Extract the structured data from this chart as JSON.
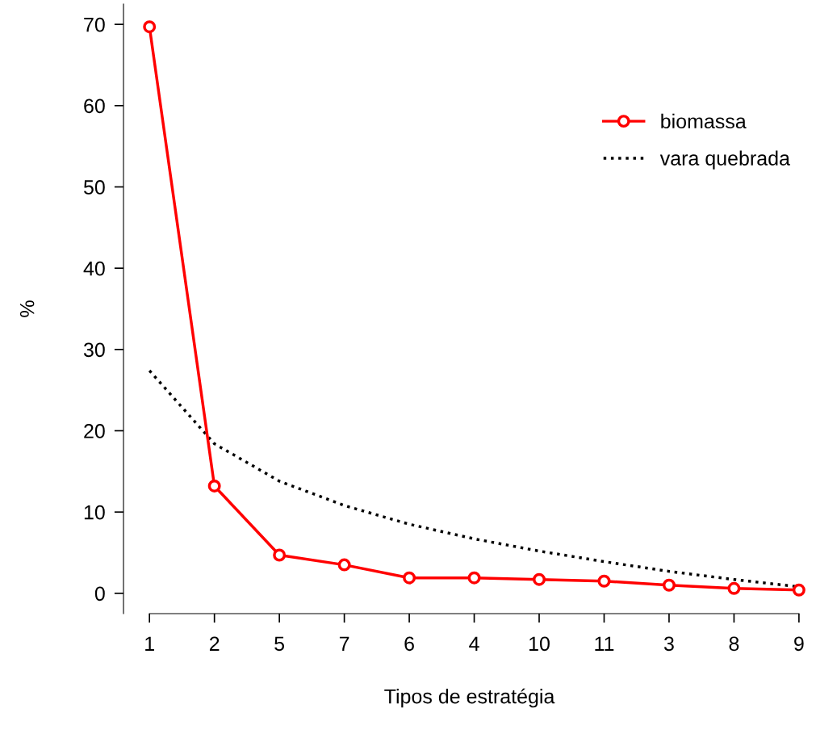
{
  "chart_data": {
    "type": "line",
    "xlabel": "Tipos de estratégia",
    "ylabel": "%",
    "categories": [
      "1",
      "2",
      "5",
      "7",
      "6",
      "4",
      "10",
      "11",
      "3",
      "8",
      "9"
    ],
    "series": [
      {
        "name": "biomassa",
        "color": "#ff0000",
        "marker": "circle",
        "line_style": "solid",
        "values": [
          69.7,
          13.2,
          4.7,
          3.5,
          1.9,
          1.9,
          1.7,
          1.5,
          1.0,
          0.6,
          0.4
        ]
      },
      {
        "name": "vara quebrada",
        "color": "#000000",
        "marker": "none",
        "line_style": "dotted",
        "values": [
          27.4,
          18.4,
          13.8,
          10.8,
          8.5,
          6.7,
          5.2,
          3.9,
          2.7,
          1.7,
          0.8
        ]
      }
    ],
    "ylim": [
      -2.5,
      72.5
    ],
    "yticks": [
      0,
      10,
      20,
      30,
      40,
      50,
      60,
      70
    ],
    "legend": "top right",
    "grid": false
  }
}
